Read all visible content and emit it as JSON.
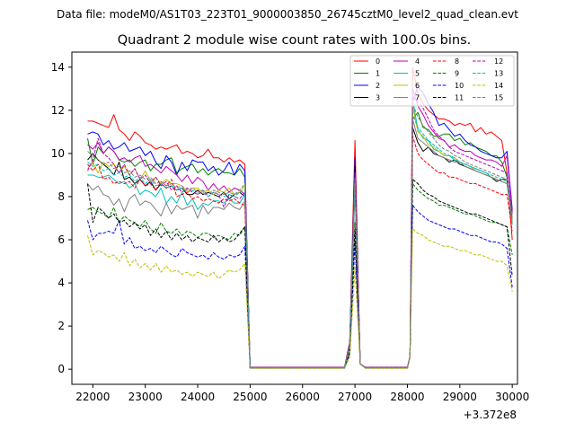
{
  "figure": {
    "suptitle": "Data file: modeM0/AS1T03_223T01_9000003850_26745cztM0_level2_quad_clean.evt"
  },
  "chart_data": {
    "type": "line",
    "title": "Quadrant 2 module wise count rates with 100.0s bins.",
    "xlabel": "",
    "ylabel": "",
    "x_offset_label": "+3.372e8",
    "xlim": [
      21600,
      30100
    ],
    "ylim": [
      -0.7,
      14.7
    ],
    "x_ticks": [
      22000,
      23000,
      24000,
      25000,
      26000,
      27000,
      28000,
      29000,
      30000
    ],
    "y_ticks": [
      0,
      2,
      4,
      6,
      8,
      10,
      12,
      14
    ],
    "legend_position": "top-right",
    "series": [
      {
        "name": "0",
        "color": "#ff0000",
        "dash": "solid",
        "start": [
          11.5,
          11.5,
          11.4,
          11.3,
          11.2,
          11.8,
          11.1,
          10.9,
          10.6,
          11.0,
          10.8,
          10.5,
          10.4,
          10.2,
          10.3,
          10.2,
          10.3,
          10.4,
          10.0,
          10.1,
          10.0,
          9.8,
          9.9,
          10.2,
          9.8,
          9.8,
          9.6,
          9.8,
          9.6,
          9.7,
          9.5
        ],
        "base": 0.09,
        "peak1": 10.6,
        "end": [
          14.0,
          12.8,
          12.3,
          12.0,
          11.8,
          11.6,
          11.6,
          11.5,
          11.3,
          11.4,
          11.3,
          11.4,
          11.0,
          11.2,
          10.9,
          11.0,
          10.8,
          10.6,
          9.1,
          6.0
        ]
      },
      {
        "name": "1",
        "color": "#008000",
        "dash": "solid",
        "start": [
          10.7,
          9.5,
          10.3,
          10.0,
          10.3,
          10.1,
          9.7,
          9.6,
          9.7,
          9.4,
          9.6,
          9.7,
          9.2,
          9.5,
          9.5,
          9.7,
          9.8,
          9.1,
          9.3,
          9.4,
          9.5,
          9.1,
          9.3,
          9.0,
          9.2,
          9.3,
          9.1,
          9.1,
          9.0,
          9.3,
          8.9
        ],
        "base": 0.07,
        "peak1": 8.4,
        "end": [
          11.6,
          11.9,
          11.2,
          11.1,
          10.8,
          10.8,
          10.9,
          10.9,
          10.6,
          10.7,
          10.4,
          10.5,
          10.3,
          10.2,
          10.1,
          9.9,
          9.9,
          9.6,
          8.9,
          7.2
        ]
      },
      {
        "name": "2",
        "color": "#0000ff",
        "dash": "solid",
        "start": [
          10.9,
          11.0,
          10.9,
          10.4,
          10.6,
          10.2,
          10.3,
          10.5,
          10.1,
          10.2,
          10.3,
          9.9,
          10.1,
          9.6,
          9.3,
          9.9,
          9.6,
          9.0,
          9.6,
          9.2,
          9.7,
          9.6,
          9.6,
          9.2,
          9.4,
          9.0,
          9.2,
          9.6,
          9.0,
          9.5,
          9.2
        ],
        "base": 0.08,
        "peak1": 9.8,
        "end": [
          12.4,
          13.1,
          12.8,
          12.3,
          11.9,
          11.3,
          11.4,
          11.1,
          10.8,
          10.9,
          10.6,
          10.4,
          10.3,
          10.1,
          10.0,
          9.9,
          9.8,
          9.8,
          10.1,
          7.4
        ]
      },
      {
        "name": "3",
        "color": "#000000",
        "dash": "solid",
        "start": [
          9.7,
          10.0,
          9.7,
          9.5,
          9.3,
          9.0,
          9.6,
          8.8,
          8.9,
          8.6,
          8.8,
          8.5,
          8.7,
          8.3,
          8.6,
          8.4,
          8.5,
          8.3,
          8.4,
          8.1,
          8.1,
          8.3,
          8.1,
          8.2,
          8.1,
          8.0,
          8.2,
          7.9,
          8.1,
          8.2,
          8.0
        ],
        "base": 0.06,
        "peak1": 9.4,
        "end": [
          11.2,
          10.5,
          10.1,
          10.3,
          10.0,
          9.9,
          9.8,
          9.6,
          9.7,
          9.5,
          9.4,
          9.3,
          9.2,
          9.1,
          9.0,
          8.9,
          8.7,
          8.8,
          8.8,
          6.9
        ]
      },
      {
        "name": "4",
        "color": "#bf00bf",
        "dash": "solid",
        "start": [
          10.4,
          10.2,
          10.5,
          10.0,
          10.3,
          10.1,
          9.7,
          9.8,
          9.6,
          9.8,
          9.9,
          9.4,
          9.5,
          9.3,
          9.1,
          9.4,
          9.2,
          9.0,
          8.7,
          9.0,
          8.6,
          8.9,
          8.7,
          8.3,
          8.6,
          8.3,
          8.5,
          8.2,
          8.4,
          8.3,
          8.1
        ],
        "base": 0.07,
        "peak1": 9.1,
        "end": [
          13.0,
          12.2,
          11.8,
          11.3,
          11.0,
          10.7,
          10.6,
          10.3,
          10.4,
          10.2,
          10.1,
          10.1,
          9.9,
          9.8,
          9.7,
          9.7,
          9.6,
          9.4,
          9.9,
          7.3
        ]
      },
      {
        "name": "5",
        "color": "#00bfbf",
        "dash": "solid",
        "start": [
          9.0,
          9.0,
          8.9,
          8.9,
          9.0,
          8.8,
          8.6,
          8.7,
          8.4,
          8.6,
          8.1,
          8.3,
          8.2,
          8.0,
          8.4,
          7.7,
          8.0,
          7.7,
          8.2,
          7.6,
          7.9,
          7.4,
          7.7,
          7.6,
          7.8,
          7.8,
          7.7,
          7.9,
          7.7,
          7.7,
          8.1
        ],
        "base": 0.07,
        "peak1": 8.7,
        "end": [
          12.5,
          11.1,
          10.7,
          10.6,
          10.2,
          10.1,
          9.9,
          9.9,
          9.7,
          9.6,
          9.5,
          9.4,
          9.3,
          9.2,
          9.1,
          8.9,
          8.8,
          8.7,
          8.6,
          6.9
        ]
      },
      {
        "name": "6",
        "color": "#bfbf00",
        "dash": "solid",
        "start": [
          9.3,
          9.6,
          9.1,
          9.6,
          9.4,
          9.5,
          9.1,
          9.4,
          9.0,
          9.3,
          8.8,
          9.2,
          8.7,
          8.9,
          8.6,
          8.8,
          8.6,
          8.6,
          8.5,
          8.2,
          8.4,
          8.4,
          8.2,
          8.3,
          8.1,
          8.3,
          8.2,
          8.4,
          8.1,
          8.2,
          8.5
        ],
        "base": 0.06,
        "peak1": 8.9,
        "end": [
          12.2,
          11.0,
          10.8,
          10.4,
          10.3,
          10.1,
          9.9,
          9.9,
          9.8,
          9.6,
          9.5,
          9.4,
          9.2,
          9.1,
          9.0,
          8.9,
          8.8,
          8.7,
          8.6,
          6.9
        ]
      },
      {
        "name": "7",
        "color": "#808080",
        "dash": "solid",
        "start": [
          8.6,
          8.3,
          8.5,
          8.1,
          8.0,
          7.6,
          7.9,
          7.3,
          7.9,
          8.1,
          7.6,
          7.8,
          7.7,
          7.4,
          7.1,
          7.7,
          7.2,
          7.6,
          7.4,
          7.5,
          7.6,
          7.0,
          7.6,
          7.2,
          7.5,
          7.5,
          7.4,
          7.7,
          7.5,
          7.4,
          7.8
        ],
        "base": 0.06,
        "peak1": 8.6,
        "end": [
          11.6,
          10.7,
          10.5,
          10.3,
          10.1,
          9.9,
          9.8,
          9.7,
          9.6,
          9.6,
          9.4,
          9.3,
          9.2,
          9.1,
          9.0,
          8.9,
          8.8,
          8.7,
          8.6,
          6.7
        ]
      },
      {
        "name": "8",
        "color": "#ff0000",
        "dash": "dashed",
        "start": [
          9.5,
          9.2,
          9.5,
          8.8,
          8.9,
          8.6,
          8.7,
          8.6,
          8.7,
          8.4,
          8.8,
          8.5,
          8.6,
          8.3,
          8.7,
          8.5,
          8.8,
          8.0,
          8.1,
          8.2,
          7.9,
          8.0,
          7.8,
          7.9,
          7.8,
          7.7,
          7.9,
          7.8,
          7.9,
          7.7,
          7.6
        ],
        "base": 0.06,
        "peak1": 8.8,
        "end": [
          10.8,
          10.0,
          9.7,
          9.5,
          9.3,
          9.1,
          9.1,
          8.9,
          8.9,
          8.8,
          8.7,
          8.6,
          8.6,
          8.5,
          8.4,
          8.3,
          8.2,
          8.1,
          8.1,
          6.4
        ]
      },
      {
        "name": "9",
        "color": "#008000",
        "dash": "dashed",
        "start": [
          7.4,
          7.5,
          7.3,
          7.2,
          7.0,
          7.5,
          6.8,
          7.1,
          6.9,
          6.8,
          6.6,
          6.9,
          6.5,
          6.3,
          6.8,
          6.4,
          6.3,
          6.5,
          6.2,
          6.4,
          6.3,
          6.1,
          6.3,
          6.3,
          6.1,
          6.2,
          6.1,
          6.0,
          6.3,
          6.2,
          6.6
        ],
        "base": 0.05,
        "peak1": 6.8,
        "end": [
          8.6,
          8.3,
          8.1,
          7.9,
          7.8,
          7.6,
          7.6,
          7.5,
          7.4,
          7.3,
          7.2,
          7.2,
          7.1,
          7.0,
          6.9,
          6.8,
          6.8,
          6.7,
          6.6,
          5.3
        ]
      },
      {
        "name": "10",
        "color": "#0000ff",
        "dash": "dashed",
        "start": [
          6.9,
          6.0,
          6.3,
          6.3,
          6.4,
          6.3,
          6.9,
          5.8,
          6.1,
          5.6,
          5.7,
          5.5,
          5.6,
          5.4,
          5.7,
          5.5,
          5.3,
          5.2,
          5.6,
          5.4,
          5.3,
          5.2,
          5.3,
          5.1,
          5.4,
          5.2,
          5.1,
          5.3,
          5.2,
          5.3,
          5.7
        ],
        "base": 0.05,
        "peak1": 5.9,
        "end": [
          7.6,
          7.3,
          7.1,
          6.9,
          6.8,
          6.7,
          6.6,
          6.5,
          6.5,
          6.4,
          6.3,
          6.2,
          6.2,
          6.1,
          6.0,
          5.9,
          5.9,
          5.8,
          5.6,
          3.8
        ]
      },
      {
        "name": "11",
        "color": "#000000",
        "dash": "dashed",
        "start": [
          8.6,
          6.8,
          7.5,
          7.3,
          7.0,
          7.2,
          6.8,
          6.9,
          6.6,
          6.8,
          6.5,
          6.7,
          6.2,
          6.5,
          6.1,
          6.4,
          6.0,
          6.3,
          6.0,
          6.2,
          5.9,
          6.1,
          6.0,
          5.9,
          6.2,
          5.9,
          6.1,
          5.9,
          6.0,
          6.3,
          6.6
        ],
        "base": 0.05,
        "peak1": 6.5,
        "end": [
          8.8,
          8.6,
          8.3,
          8.1,
          8.0,
          7.8,
          7.7,
          7.6,
          7.5,
          7.4,
          7.3,
          7.2,
          7.2,
          7.1,
          7.0,
          6.9,
          6.8,
          6.7,
          6.6,
          4.3
        ]
      },
      {
        "name": "12",
        "color": "#bf00bf",
        "dash": "dashed",
        "start": [
          9.2,
          9.7,
          10.7,
          10.0,
          9.8,
          9.5,
          9.1,
          9.5,
          9.0,
          9.3,
          8.8,
          9.0,
          8.6,
          8.9,
          8.5,
          8.7,
          8.3,
          8.5,
          8.2,
          8.4,
          8.2,
          8.1,
          8.3,
          8.0,
          8.2,
          8.1,
          7.5,
          8.1,
          8.0,
          7.9,
          8.2
        ],
        "base": 0.06,
        "peak1": 9.0,
        "end": [
          12.6,
          12.4,
          12.1,
          11.6,
          11.1,
          10.8,
          10.6,
          10.3,
          10.1,
          10.0,
          9.9,
          9.8,
          9.7,
          9.6,
          9.5,
          9.4,
          9.3,
          9.2,
          9.1,
          7.0
        ]
      },
      {
        "name": "13",
        "color": "#00bfbf",
        "dash": "dashed",
        "start": [
          9.6,
          9.4,
          9.5,
          9.2,
          9.3,
          9.0,
          9.1,
          8.9,
          9.0,
          8.7,
          8.9,
          8.6,
          8.8,
          8.5,
          8.6,
          8.4,
          8.5,
          8.3,
          8.4,
          8.2,
          8.3,
          8.1,
          8.2,
          8.0,
          8.2,
          8.1,
          8.0,
          8.1,
          8.0,
          8.2,
          8.3
        ],
        "base": 0.06,
        "peak1": 8.6,
        "end": [
          11.8,
          11.2,
          10.9,
          10.6,
          10.4,
          10.2,
          10.0,
          9.9,
          9.8,
          9.6,
          9.5,
          9.4,
          9.3,
          9.2,
          9.1,
          9.0,
          8.9,
          8.8,
          8.7,
          6.8
        ]
      },
      {
        "name": "14",
        "color": "#bfbf00",
        "dash": "dashed",
        "start": [
          6.2,
          5.3,
          5.5,
          5.4,
          5.2,
          5.3,
          5.0,
          5.4,
          4.8,
          5.1,
          4.7,
          4.9,
          4.6,
          4.9,
          4.5,
          4.8,
          4.5,
          4.6,
          4.4,
          4.5,
          4.3,
          4.5,
          4.4,
          4.3,
          4.5,
          4.2,
          4.4,
          4.6,
          4.5,
          4.6,
          4.9
        ],
        "base": 0.04,
        "peak1": 4.7,
        "end": [
          6.5,
          6.3,
          6.2,
          6.0,
          5.9,
          5.8,
          5.7,
          5.7,
          5.6,
          5.5,
          5.5,
          5.4,
          5.3,
          5.3,
          5.2,
          5.1,
          5.0,
          5.0,
          4.8,
          3.6
        ]
      },
      {
        "name": "15",
        "color": "#808080",
        "dash": "dashed",
        "start": [
          10.1,
          9.9,
          9.7,
          9.5,
          9.6,
          9.3,
          9.4,
          9.1,
          9.2,
          8.9,
          9.0,
          8.8,
          8.9,
          8.6,
          8.7,
          8.5,
          8.6,
          8.4,
          8.5,
          8.3,
          8.4,
          8.2,
          8.3,
          8.1,
          8.3,
          8.2,
          8.1,
          8.2,
          8.1,
          8.3,
          8.6
        ],
        "base": 0.06,
        "peak1": 8.9,
        "end": [
          12.3,
          11.7,
          11.3,
          11.0,
          10.7,
          10.4,
          10.2,
          10.1,
          9.9,
          9.8,
          9.6,
          9.5,
          9.4,
          9.3,
          9.2,
          9.1,
          9.0,
          8.9,
          8.8,
          7.0
        ]
      }
    ]
  }
}
